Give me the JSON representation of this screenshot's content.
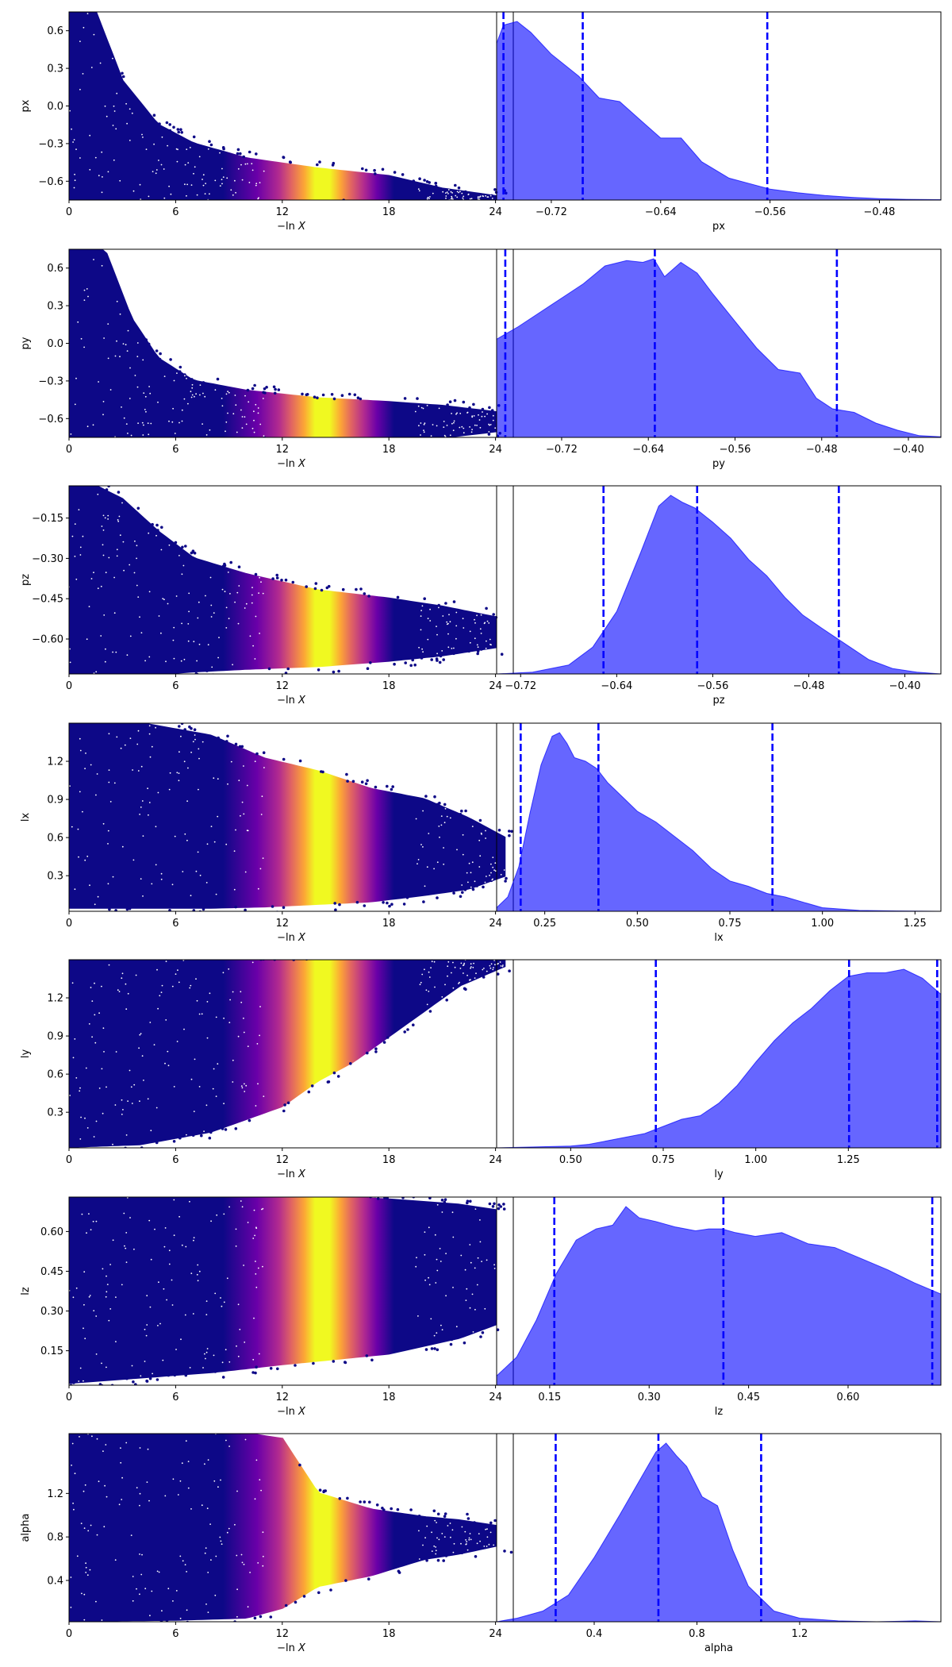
{
  "figure": {
    "colors": {
      "scatter_cmap": [
        "#0d0887",
        "#6a00a8",
        "#b12a90",
        "#e16462",
        "#fca636",
        "#f0f921"
      ],
      "density_fill": "#0000ff",
      "density_alpha": 0.6,
      "quantile_line": "#0000ff"
    }
  },
  "chart_data": [
    {
      "type": "scatter",
      "name": "px-trace",
      "xlabel": "−ln X",
      "ylabel": "px",
      "xlim": [
        0,
        25
      ],
      "ylim": [
        -0.75,
        0.75
      ],
      "xticks": [
        0,
        6,
        12,
        18,
        24
      ],
      "yticks": [
        -0.6,
        -0.3,
        0.0,
        0.3,
        0.6
      ],
      "xticklabels": [
        "0",
        "6",
        "12",
        "18",
        "24"
      ],
      "yticklabels": [
        "−0.6",
        "−0.3",
        "0.0",
        "0.3",
        "0.6"
      ],
      "envelope": {
        "x": [
          0,
          1.5,
          3,
          5,
          7,
          10,
          14,
          18,
          21,
          24
        ],
        "upper": [
          0.75,
          0.75,
          0.2,
          -0.15,
          -0.3,
          -0.42,
          -0.5,
          -0.56,
          -0.66,
          -0.72
        ],
        "lower": [
          -0.75,
          -0.75,
          -0.75,
          -0.75,
          -0.75,
          -0.75,
          -0.75,
          -0.75,
          -0.75,
          -0.75
        ]
      },
      "color_peak_x": 14.5
    },
    {
      "type": "area",
      "name": "px-density",
      "xlabel": "px",
      "ylabel": "",
      "xlim": [
        -0.76,
        -0.435
      ],
      "xticks": [
        -0.72,
        -0.64,
        -0.56,
        -0.48
      ],
      "xticklabels": [
        "−0.72",
        "−0.64",
        "−0.56",
        "−0.48"
      ],
      "x": [
        -0.76,
        -0.755,
        -0.745,
        -0.735,
        -0.72,
        -0.7,
        -0.685,
        -0.67,
        -0.655,
        -0.64,
        -0.625,
        -0.61,
        -0.59,
        -0.575,
        -0.56,
        -0.54,
        -0.52,
        -0.5,
        -0.48,
        -0.46,
        -0.435
      ],
      "y": [
        0.86,
        0.96,
        0.98,
        0.92,
        0.8,
        0.68,
        0.56,
        0.54,
        0.44,
        0.34,
        0.34,
        0.21,
        0.12,
        0.09,
        0.06,
        0.04,
        0.025,
        0.015,
        0.008,
        0.004,
        0.002
      ],
      "quantiles": [
        -0.755,
        -0.697,
        -0.562
      ]
    },
    {
      "type": "scatter",
      "name": "py-trace",
      "xlabel": "−ln X",
      "ylabel": "py",
      "xlim": [
        0,
        25
      ],
      "ylim": [
        -0.75,
        0.75
      ],
      "xticks": [
        0,
        6,
        12,
        18,
        24
      ],
      "yticks": [
        -0.6,
        -0.3,
        0.0,
        0.3,
        0.6
      ],
      "xticklabels": [
        "0",
        "6",
        "12",
        "18",
        "24"
      ],
      "yticklabels": [
        "−0.6",
        "−0.3",
        "0.0",
        "0.3",
        "0.6"
      ],
      "envelope": {
        "x": [
          0,
          2,
          3.5,
          5,
          7,
          10,
          14,
          18,
          21,
          24
        ],
        "upper": [
          0.75,
          0.75,
          0.2,
          -0.12,
          -0.3,
          -0.38,
          -0.44,
          -0.47,
          -0.5,
          -0.55
        ],
        "lower": [
          -0.75,
          -0.75,
          -0.75,
          -0.75,
          -0.75,
          -0.75,
          -0.75,
          -0.75,
          -0.75,
          -0.7
        ]
      },
      "color_peak_x": 14.5
    },
    {
      "type": "area",
      "name": "py-density",
      "xlabel": "py",
      "ylabel": "",
      "xlim": [
        -0.78,
        -0.37
      ],
      "xticks": [
        -0.72,
        -0.64,
        -0.56,
        -0.48,
        -0.4
      ],
      "xticklabels": [
        "−0.72",
        "−0.64",
        "−0.56",
        "−0.48",
        "−0.40"
      ],
      "x": [
        -0.78,
        -0.76,
        -0.74,
        -0.72,
        -0.7,
        -0.68,
        -0.66,
        -0.645,
        -0.635,
        -0.625,
        -0.61,
        -0.595,
        -0.58,
        -0.56,
        -0.54,
        -0.52,
        -0.5,
        -0.485,
        -0.47,
        -0.45,
        -0.43,
        -0.41,
        -0.39,
        -0.37
      ],
      "y": [
        0.55,
        0.62,
        0.7,
        0.78,
        0.86,
        0.96,
        0.99,
        0.98,
        1.0,
        0.9,
        0.98,
        0.92,
        0.8,
        0.65,
        0.5,
        0.38,
        0.36,
        0.22,
        0.16,
        0.14,
        0.08,
        0.04,
        0.01,
        0.003
      ],
      "quantiles": [
        -0.772,
        -0.634,
        -0.466
      ]
    },
    {
      "type": "scatter",
      "name": "pz-trace",
      "xlabel": "−ln X",
      "ylabel": "pz",
      "xlim": [
        0,
        25
      ],
      "ylim": [
        -0.73,
        -0.03
      ],
      "xticks": [
        0,
        6,
        12,
        18,
        24
      ],
      "yticks": [
        -0.6,
        -0.45,
        -0.3,
        -0.15
      ],
      "xticklabels": [
        "0",
        "6",
        "12",
        "18",
        "24"
      ],
      "yticklabels": [
        "−0.60",
        "−0.45",
        "−0.30",
        "−0.15"
      ],
      "envelope": {
        "x": [
          0,
          1.5,
          3,
          5,
          7,
          10,
          14,
          18,
          21,
          24
        ],
        "upper": [
          -0.03,
          -0.03,
          -0.08,
          -0.2,
          -0.3,
          -0.36,
          -0.42,
          -0.45,
          -0.48,
          -0.52
        ],
        "lower": [
          -0.73,
          -0.73,
          -0.73,
          -0.73,
          -0.72,
          -0.71,
          -0.7,
          -0.68,
          -0.66,
          -0.63
        ]
      },
      "color_peak_x": 14.5
    },
    {
      "type": "area",
      "name": "pz-density",
      "xlabel": "pz",
      "ylabel": "",
      "xlim": [
        -0.74,
        -0.37
      ],
      "xticks": [
        -0.72,
        -0.64,
        -0.56,
        -0.48,
        -0.4
      ],
      "xticklabels": [
        "−0.72",
        "−0.64",
        "−0.56",
        "−0.48",
        "−0.40"
      ],
      "x": [
        -0.74,
        -0.71,
        -0.68,
        -0.66,
        -0.64,
        -0.62,
        -0.605,
        -0.595,
        -0.585,
        -0.575,
        -0.56,
        -0.545,
        -0.53,
        -0.515,
        -0.5,
        -0.485,
        -0.47,
        -0.45,
        -0.43,
        -0.41,
        -0.39,
        -0.37
      ],
      "y": [
        0.0,
        0.01,
        0.05,
        0.15,
        0.35,
        0.68,
        0.94,
        1.0,
        0.96,
        0.93,
        0.85,
        0.76,
        0.64,
        0.55,
        0.43,
        0.33,
        0.26,
        0.17,
        0.08,
        0.03,
        0.01,
        0.0
      ],
      "quantiles": [
        -0.651,
        -0.573,
        -0.455
      ]
    },
    {
      "type": "scatter",
      "name": "lx-trace",
      "xlabel": "−ln X",
      "ylabel": "lx",
      "xlim": [
        0,
        25
      ],
      "ylim": [
        0.02,
        1.5
      ],
      "xticks": [
        0,
        6,
        12,
        18,
        24
      ],
      "yticks": [
        0.3,
        0.6,
        0.9,
        1.2
      ],
      "xticklabels": [
        "0",
        "6",
        "12",
        "18",
        "24"
      ],
      "yticklabels": [
        "0.3",
        "0.6",
        "0.9",
        "1.2"
      ],
      "envelope": {
        "x": [
          0,
          4,
          8,
          11,
          14,
          17,
          20,
          22.5,
          24.5
        ],
        "upper": [
          1.5,
          1.5,
          1.4,
          1.22,
          1.12,
          0.98,
          0.9,
          0.75,
          0.6
        ],
        "lower": [
          0.05,
          0.05,
          0.05,
          0.06,
          0.08,
          0.1,
          0.15,
          0.2,
          0.3
        ]
      },
      "color_peak_x": 14.5
    },
    {
      "type": "area",
      "name": "lx-density",
      "xlabel": "lx",
      "ylabel": "",
      "xlim": [
        0.12,
        1.32
      ],
      "xticks": [
        0.25,
        0.5,
        0.75,
        1.0,
        1.25
      ],
      "xticklabels": [
        "0.25",
        "0.50",
        "0.75",
        "1.00",
        "1.25"
      ],
      "x": [
        0.12,
        0.15,
        0.18,
        0.21,
        0.24,
        0.27,
        0.29,
        0.31,
        0.33,
        0.36,
        0.39,
        0.42,
        0.46,
        0.5,
        0.55,
        0.6,
        0.65,
        0.7,
        0.75,
        0.8,
        0.85,
        0.9,
        0.95,
        1.0,
        1.1,
        1.2,
        1.32
      ],
      "y": [
        0.02,
        0.08,
        0.25,
        0.55,
        0.82,
        0.98,
        1.0,
        0.94,
        0.86,
        0.84,
        0.8,
        0.72,
        0.64,
        0.56,
        0.5,
        0.42,
        0.34,
        0.24,
        0.17,
        0.14,
        0.1,
        0.08,
        0.05,
        0.02,
        0.005,
        0.002,
        0.0
      ],
      "quantiles": [
        0.185,
        0.395,
        0.865
      ]
    },
    {
      "type": "scatter",
      "name": "ly-trace",
      "xlabel": "−ln X",
      "ylabel": "ly",
      "xlim": [
        0,
        25
      ],
      "ylim": [
        0.02,
        1.5
      ],
      "xticks": [
        0,
        6,
        12,
        18,
        24
      ],
      "yticks": [
        0.3,
        0.6,
        0.9,
        1.2
      ],
      "xticklabels": [
        "0",
        "6",
        "12",
        "18",
        "24"
      ],
      "yticklabels": [
        "0.3",
        "0.6",
        "0.9",
        "1.2"
      ],
      "envelope": {
        "x": [
          0,
          4,
          8,
          12,
          14,
          16,
          18,
          20,
          22,
          24.5
        ],
        "upper": [
          1.5,
          1.5,
          1.5,
          1.5,
          1.5,
          1.5,
          1.5,
          1.5,
          1.5,
          1.5
        ],
        "lower": [
          0.03,
          0.05,
          0.15,
          0.35,
          0.55,
          0.7,
          0.9,
          1.1,
          1.3,
          1.45
        ]
      },
      "color_peak_x": 14.5
    },
    {
      "type": "area",
      "name": "ly-density",
      "xlabel": "ly",
      "ylabel": "",
      "xlim": [
        0.3,
        1.5
      ],
      "xticks": [
        0.5,
        0.75,
        1.0,
        1.25
      ],
      "xticklabels": [
        "0.50",
        "0.75",
        "1.00",
        "1.25"
      ],
      "x": [
        0.3,
        0.4,
        0.5,
        0.55,
        0.6,
        0.65,
        0.7,
        0.75,
        0.8,
        0.85,
        0.9,
        0.95,
        1.0,
        1.05,
        1.1,
        1.15,
        1.2,
        1.25,
        1.3,
        1.35,
        1.4,
        1.45,
        1.5
      ],
      "y": [
        0.0,
        0.005,
        0.01,
        0.02,
        0.04,
        0.06,
        0.08,
        0.12,
        0.16,
        0.18,
        0.25,
        0.35,
        0.48,
        0.6,
        0.7,
        0.78,
        0.88,
        0.96,
        0.98,
        0.98,
        1.0,
        0.95,
        0.86
      ],
      "quantiles": [
        0.73,
        1.252,
        1.49
      ]
    },
    {
      "type": "scatter",
      "name": "lz-trace",
      "xlabel": "−ln X",
      "ylabel": "lz",
      "xlim": [
        0,
        25
      ],
      "ylim": [
        0.02,
        0.73
      ],
      "xticks": [
        0,
        6,
        12,
        18,
        24
      ],
      "yticks": [
        0.15,
        0.3,
        0.45,
        0.6
      ],
      "xticklabels": [
        "0",
        "6",
        "12",
        "18",
        "24"
      ],
      "yticklabels": [
        "0.15",
        "0.30",
        "0.45",
        "0.60"
      ],
      "envelope": {
        "x": [
          0,
          4,
          8,
          12,
          15,
          18,
          20,
          22,
          24
        ],
        "upper": [
          0.73,
          0.73,
          0.73,
          0.73,
          0.73,
          0.72,
          0.71,
          0.7,
          0.68
        ],
        "lower": [
          0.03,
          0.05,
          0.07,
          0.1,
          0.12,
          0.14,
          0.17,
          0.2,
          0.25
        ]
      },
      "color_peak_x": 14.5
    },
    {
      "type": "area",
      "name": "lz-density",
      "xlabel": "lz",
      "ylabel": "",
      "xlim": [
        0.07,
        0.74
      ],
      "xticks": [
        0.15,
        0.3,
        0.45,
        0.6
      ],
      "xticklabels": [
        "0.15",
        "0.30",
        "0.45",
        "0.60"
      ],
      "x": [
        0.07,
        0.1,
        0.13,
        0.16,
        0.19,
        0.22,
        0.245,
        0.265,
        0.285,
        0.31,
        0.34,
        0.37,
        0.39,
        0.41,
        0.43,
        0.46,
        0.5,
        0.54,
        0.58,
        0.62,
        0.66,
        0.7,
        0.74
      ],
      "y": [
        0.05,
        0.15,
        0.35,
        0.6,
        0.78,
        0.84,
        0.86,
        0.96,
        0.9,
        0.88,
        0.85,
        0.83,
        0.84,
        0.84,
        0.82,
        0.8,
        0.82,
        0.76,
        0.74,
        0.68,
        0.62,
        0.55,
        0.49
      ],
      "quantiles": [
        0.157,
        0.412,
        0.727
      ]
    },
    {
      "type": "scatter",
      "name": "alpha-trace",
      "xlabel": "−ln X",
      "ylabel": "alpha",
      "xlim": [
        0,
        25
      ],
      "ylim": [
        0.02,
        1.75
      ],
      "xticks": [
        0,
        6,
        12,
        18,
        24
      ],
      "yticks": [
        0.4,
        0.8,
        1.2
      ],
      "xticklabels": [
        "0",
        "6",
        "12",
        "18",
        "24"
      ],
      "yticklabels": [
        "0.4",
        "0.8",
        "1.2"
      ],
      "envelope": {
        "x": [
          0,
          6,
          10,
          12,
          14,
          17,
          20,
          22,
          24
        ],
        "upper": [
          1.75,
          1.75,
          1.75,
          1.7,
          1.2,
          1.05,
          0.98,
          0.95,
          0.9
        ],
        "lower": [
          0.03,
          0.04,
          0.06,
          0.15,
          0.35,
          0.45,
          0.6,
          0.65,
          0.72
        ]
      },
      "color_peak_x": 14.5
    },
    {
      "type": "area",
      "name": "alpha-density",
      "xlabel": "alpha",
      "ylabel": "",
      "xlim": [
        0.02,
        1.75
      ],
      "xticks": [
        0.4,
        0.8,
        1.2
      ],
      "xticklabels": [
        "0.4",
        "0.8",
        "1.2"
      ],
      "x": [
        0.02,
        0.1,
        0.2,
        0.3,
        0.4,
        0.5,
        0.58,
        0.64,
        0.68,
        0.72,
        0.76,
        0.82,
        0.88,
        0.94,
        1.0,
        1.1,
        1.2,
        1.35,
        1.5,
        1.65,
        1.75
      ],
      "y": [
        0.0,
        0.02,
        0.06,
        0.15,
        0.36,
        0.6,
        0.8,
        0.95,
        1.0,
        0.93,
        0.87,
        0.7,
        0.65,
        0.4,
        0.2,
        0.06,
        0.02,
        0.005,
        0.0,
        0.005,
        0.0
      ],
      "quantiles": [
        0.25,
        0.65,
        1.05
      ]
    }
  ]
}
